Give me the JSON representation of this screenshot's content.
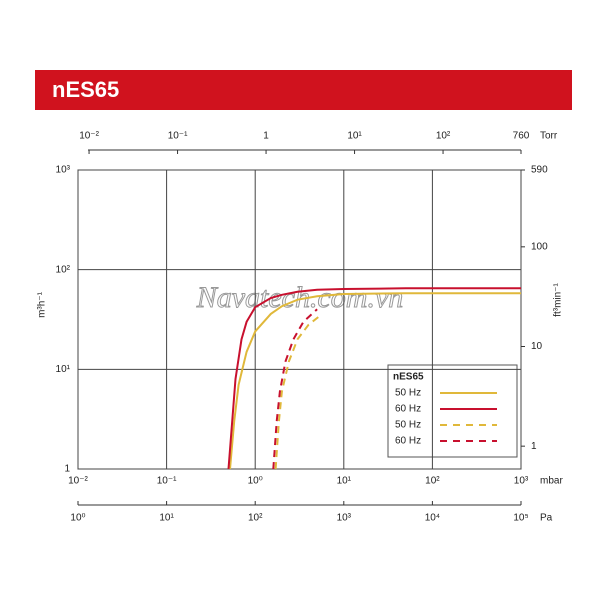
{
  "chart_data": {
    "type": "line",
    "title": "nES65",
    "watermark": "Navatech.com.vn",
    "log_scale": true,
    "grid": true,
    "xlabel": "mbar",
    "xlim": [
      0.01,
      1000
    ],
    "xticks": [
      {
        "value": 0.01,
        "label": "10⁻²"
      },
      {
        "value": 0.1,
        "label": "10⁻¹"
      },
      {
        "value": 1,
        "label": "10⁰"
      },
      {
        "value": 10,
        "label": "10¹"
      },
      {
        "value": 100,
        "label": "10²"
      },
      {
        "value": 1000,
        "label": "10³"
      }
    ],
    "ylabel": "m³h⁻¹",
    "ylim": [
      1,
      1000
    ],
    "yticks": [
      1,
      {
        "value": 10,
        "label": "10¹"
      },
      {
        "value": 100,
        "label": "10²"
      },
      {
        "value": 1000,
        "label": "10³"
      }
    ],
    "y2label": "ft³min⁻¹",
    "y2lim": [
      0.59,
      590
    ],
    "y2ticks": [
      1,
      10,
      100,
      590
    ],
    "top_axis": {
      "label": "Torr",
      "lim": [
        0.0075,
        760
      ],
      "ticks": [
        {
          "value": 0.01,
          "label": "10⁻²"
        },
        {
          "value": 0.1,
          "label": "10⁻¹"
        },
        1,
        {
          "value": 10,
          "label": "10¹"
        },
        {
          "value": 100,
          "label": "10²"
        },
        760
      ]
    },
    "bottom_axis": {
      "label": "Pa",
      "lim": [
        1,
        100000
      ],
      "ticks": [
        {
          "value": 1,
          "label": "10⁰"
        },
        {
          "value": 10,
          "label": "10¹"
        },
        {
          "value": 100,
          "label": "10²"
        },
        {
          "value": 1000,
          "label": "10³"
        },
        {
          "value": 10000,
          "label": "10⁴"
        },
        {
          "value": 100000,
          "label": "10⁵"
        }
      ]
    },
    "legend_title": "nES65",
    "series": [
      {
        "name": "50 Hz",
        "color": "#e0b83a",
        "dashed": false,
        "x": [
          0.52,
          0.58,
          0.65,
          0.8,
          1,
          1.5,
          2,
          3,
          5,
          10,
          50,
          1000
        ],
        "values": [
          1,
          3,
          7,
          15,
          24,
          36,
          43,
          50,
          54,
          57,
          58,
          58
        ]
      },
      {
        "name": "60 Hz",
        "color": "#c8102e",
        "dashed": false,
        "x": [
          0.5,
          0.55,
          0.6,
          0.7,
          0.8,
          1,
          1.5,
          2,
          3,
          5,
          10,
          50,
          1000
        ],
        "values": [
          1,
          3,
          8,
          20,
          30,
          42,
          52,
          56,
          60,
          63,
          64,
          65,
          65
        ]
      },
      {
        "name": "50 Hz",
        "color": "#e0b83a",
        "dashed": true,
        "x": [
          1.7,
          1.85,
          2,
          2.4,
          3,
          4,
          5.5
        ],
        "values": [
          1,
          3,
          6,
          12,
          20,
          28,
          35
        ]
      },
      {
        "name": "60 Hz",
        "color": "#c8102e",
        "dashed": true,
        "x": [
          1.6,
          1.75,
          1.9,
          2.2,
          2.7,
          3.5,
          5
        ],
        "values": [
          1,
          3,
          6,
          12,
          20,
          30,
          40
        ]
      }
    ]
  }
}
